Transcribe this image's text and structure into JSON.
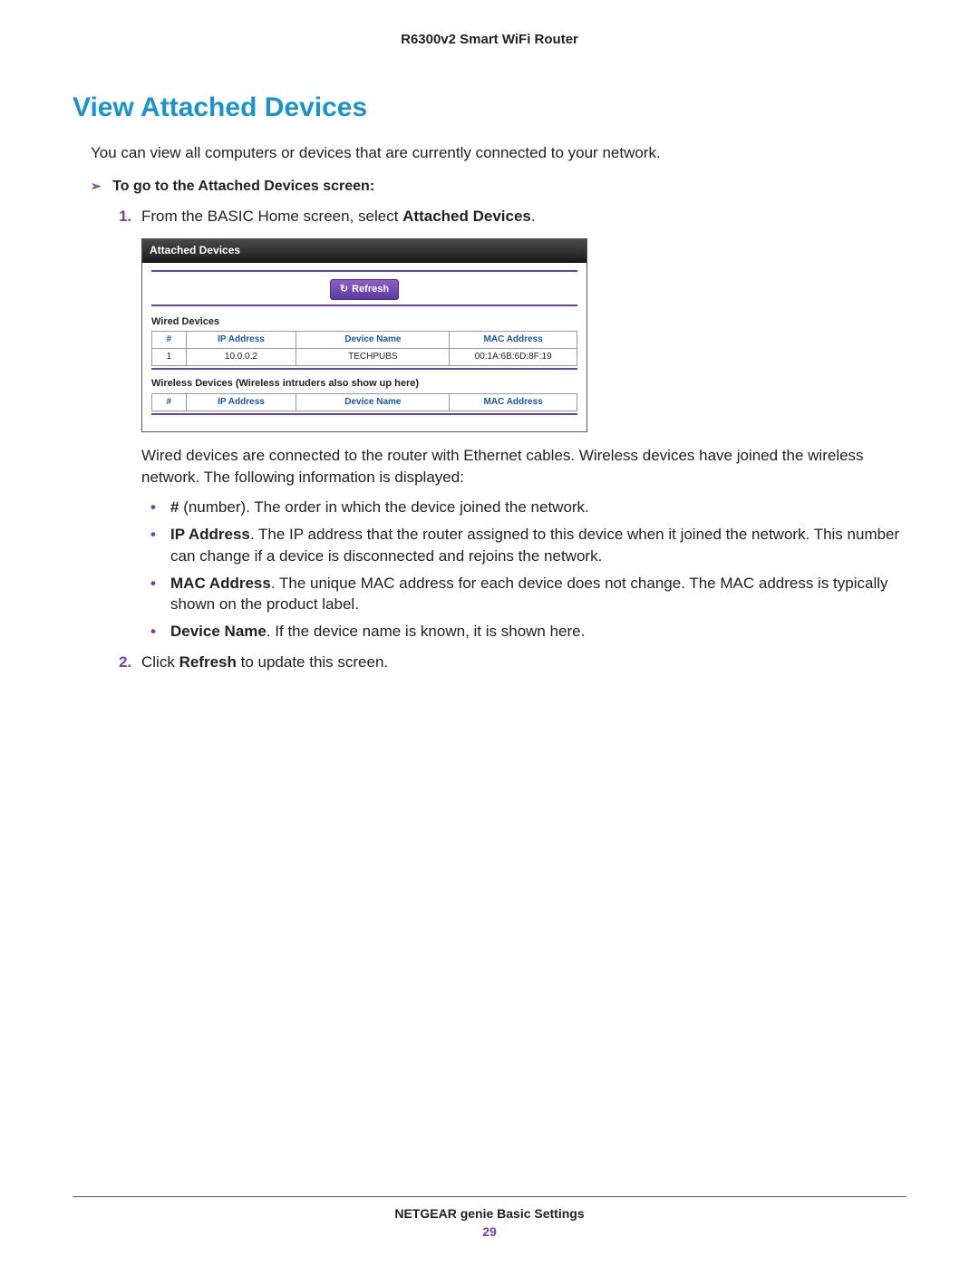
{
  "header": {
    "product": "R6300v2 Smart WiFi Router"
  },
  "title": "View Attached Devices",
  "intro": "You can view all computers or devices that are currently connected to your network.",
  "procedure": {
    "heading": "To go to the Attached Devices screen:",
    "step1_pre": "From the BASIC Home screen, select ",
    "step1_bold": "Attached Devices",
    "step1_post": ".",
    "after_shot": "Wired devices are connected to the router with Ethernet cables. Wireless devices have joined the wireless network. The following information is displayed:",
    "fields": {
      "num_label": "#",
      "num_text": " (number). The order in which the device joined the network.",
      "ip_label": "IP Address",
      "ip_text": ". The IP address that the router assigned to this device when it joined the network. This number can change if a device is disconnected and rejoins the network.",
      "mac_label": "MAC Address",
      "mac_text": ". The unique MAC address for each device does not change. The MAC address is typically shown on the product label.",
      "name_label": "Device Name",
      "name_text": ". If the device name is known, it is shown here."
    },
    "step2_pre": "Click ",
    "step2_bold": "Refresh",
    "step2_post": " to update this screen."
  },
  "screenshot": {
    "panel_title": "Attached Devices",
    "refresh_label": "Refresh",
    "wired_label": "Wired Devices",
    "wireless_label": "Wireless Devices (Wireless intruders also show up here)",
    "cols": {
      "num": "#",
      "ip": "IP Address",
      "name": "Device Name",
      "mac": "MAC Address"
    },
    "wired_rows": [
      {
        "num": "1",
        "ip": "10.0.0.2",
        "name": "TECHPUBS",
        "mac": "00:1A:6B:6D:8F:19"
      }
    ],
    "colors": {
      "header_color": "#1558a8",
      "accent": "#6d3fa0",
      "titlebar_bg": "#2f2f2f",
      "btn_bg": "#6d3fa0"
    },
    "col_widths": {
      "num": "8%",
      "ip": "26%",
      "name": "36%",
      "mac": "30%"
    }
  },
  "footer": {
    "section": "NETGEAR genie Basic Settings",
    "page": "29"
  },
  "colors": {
    "title": "#1993d0",
    "accent": "#7a3da6",
    "text": "#222222",
    "background": "#ffffff"
  }
}
